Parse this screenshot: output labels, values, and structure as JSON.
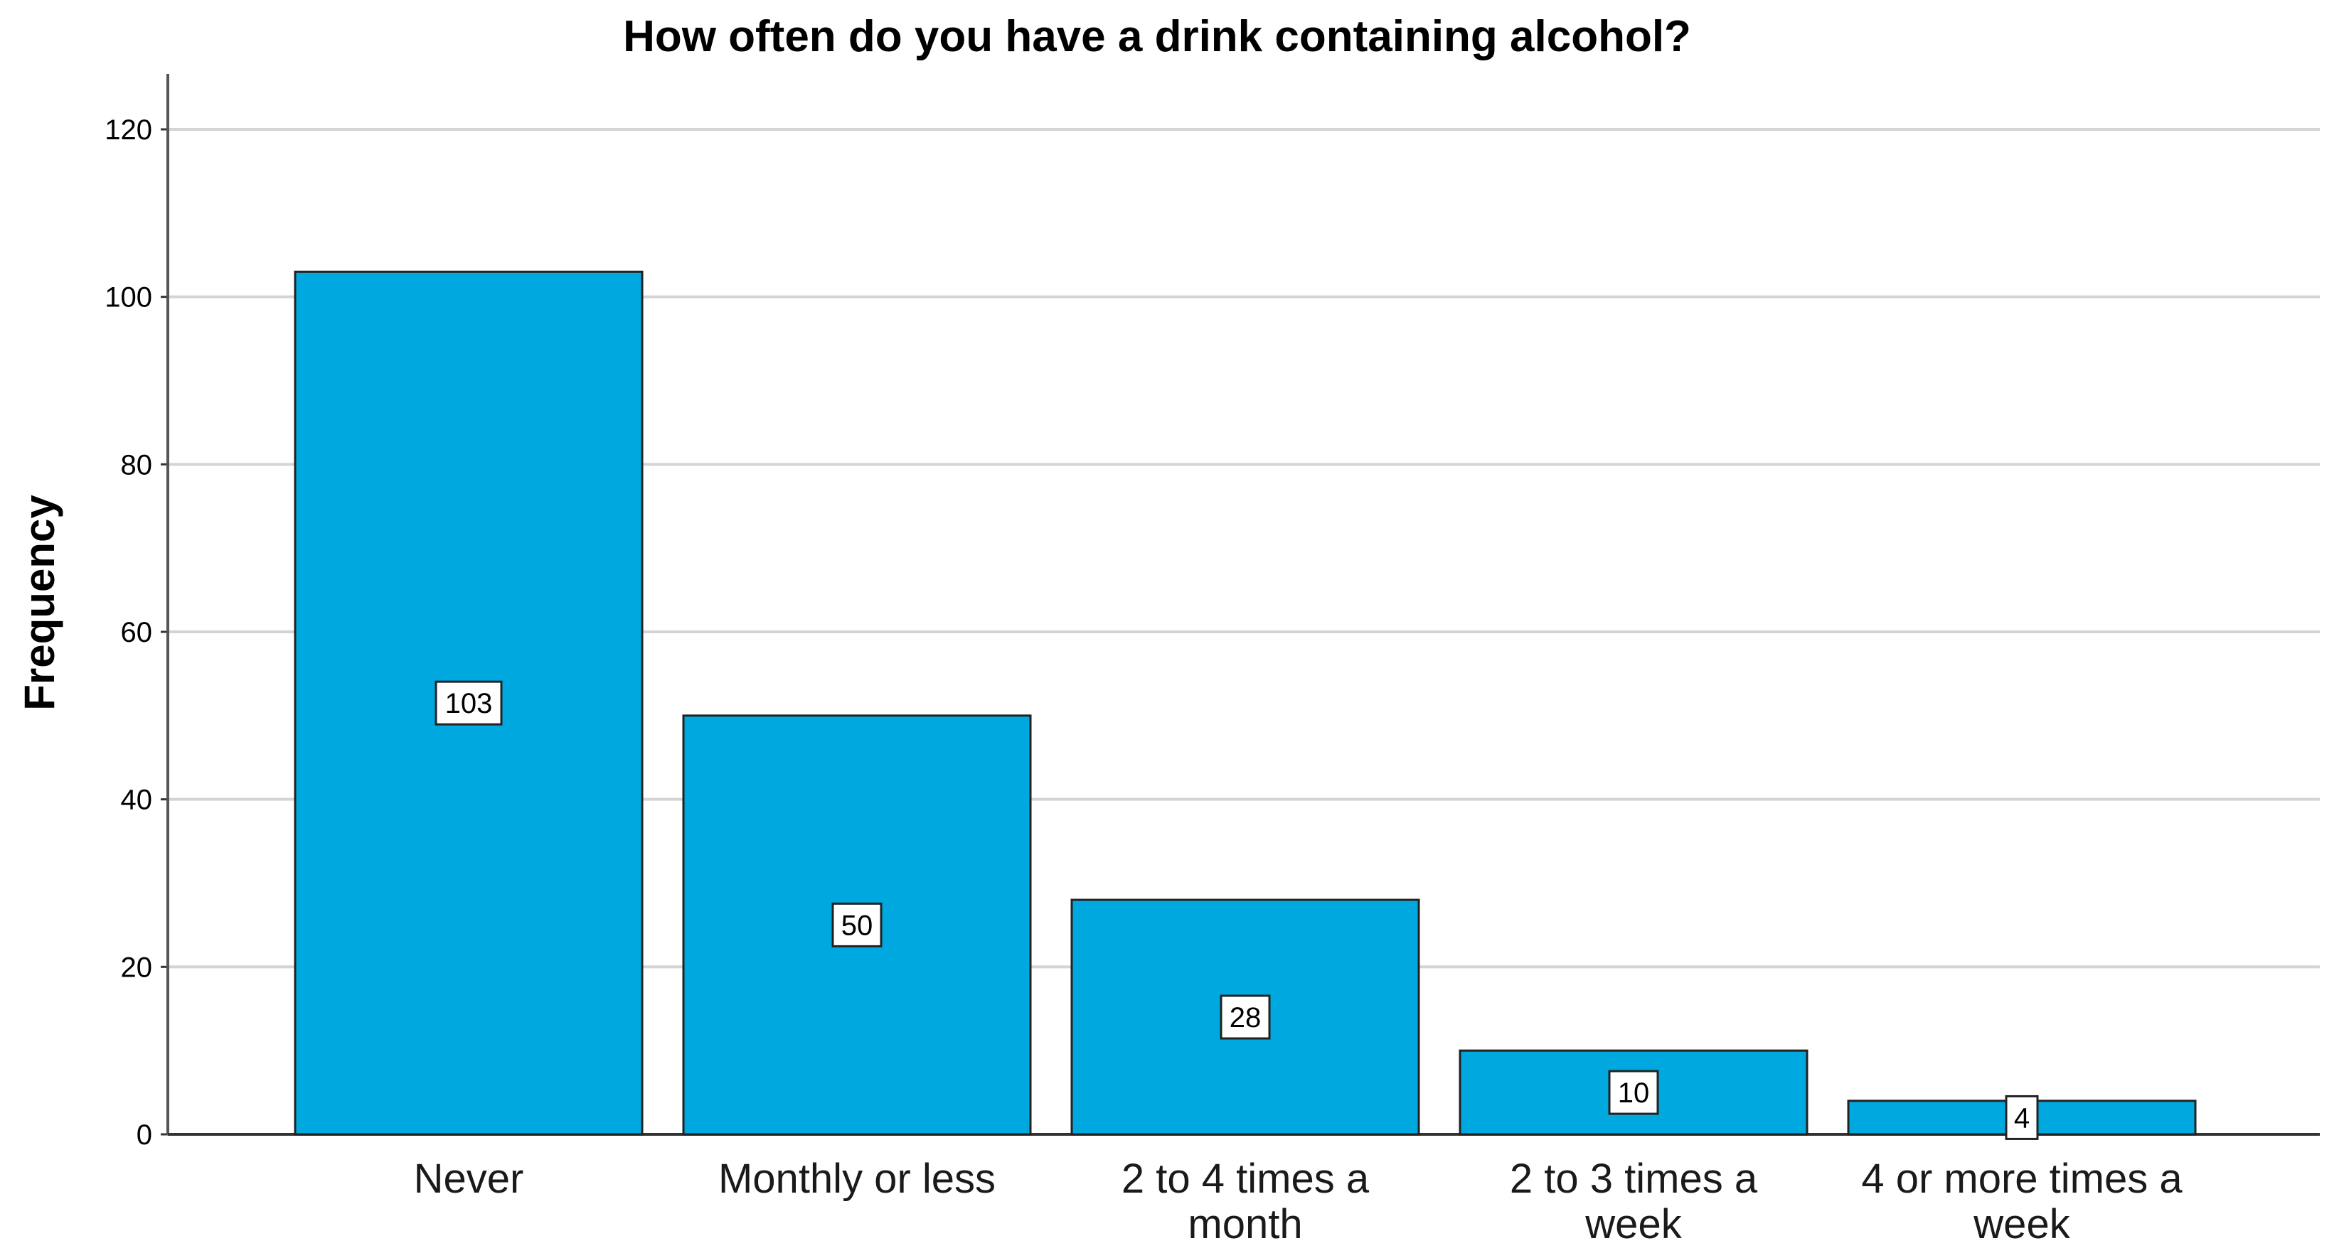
{
  "chart_data": {
    "type": "bar",
    "title": "How often do you have a drink containing alcohol?",
    "xlabel": "",
    "ylabel": "Frequency",
    "ylim": [
      0,
      125
    ],
    "yticks": [
      0,
      20,
      40,
      60,
      80,
      100,
      120
    ],
    "grid": true,
    "legend": "none",
    "bar_color": "#00a8e0",
    "categories": [
      [
        "Never"
      ],
      [
        "Monthly or less"
      ],
      [
        "2 to 4 times a",
        "month"
      ],
      [
        "2 to 3 times a",
        "week"
      ],
      [
        "4 or more times a",
        "week"
      ]
    ],
    "values": [
      103,
      50,
      28,
      10,
      4
    ],
    "data_labels": [
      "103",
      "50",
      "28",
      "10",
      "4"
    ]
  }
}
